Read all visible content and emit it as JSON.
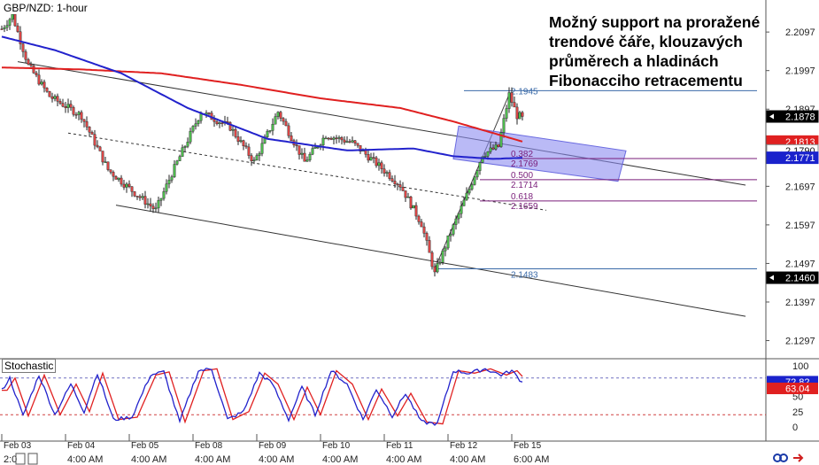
{
  "header": {
    "symbol_title": "GBP/NZD: 1-hour"
  },
  "annotation": {
    "text": "Možný support na proražené trendové čáře, klouzavých průměrech a hladinách Fibonacciho retracementu"
  },
  "indicator": {
    "name": "Stochastic"
  },
  "colors": {
    "bull": "#4db84d",
    "bear": "#d64545",
    "ema_red": "#e02020",
    "ema_blue": "#2222cc",
    "fib": "#7a1e7a",
    "box": "#8c8cf0",
    "trend": "#333333",
    "stoch_blue": "#2222cc",
    "stoch_red": "#e02020",
    "stoch_level": "#7070c0"
  },
  "chart_data": {
    "type": "candlestick",
    "title": "GBP/NZD: 1-hour",
    "ylim": [
      2.125,
      2.218
    ],
    "price_axis_labels": [
      "2.2097",
      "2.1997",
      "2.1897",
      "2.1797",
      "2.1697",
      "2.1597",
      "2.1497",
      "2.1397",
      "2.1297"
    ],
    "price_tags": [
      {
        "label": "2.1878",
        "style": "last"
      },
      {
        "label": "2.1813",
        "style": "red"
      },
      {
        "label": "2.1790",
        "style": "white"
      },
      {
        "label": "2.1771",
        "style": "blue"
      },
      {
        "label": "2.1460",
        "style": "last"
      }
    ],
    "x_labels": [
      {
        "date": "Feb 03",
        "time": "2:0",
        "index": 0
      },
      {
        "date": "Feb 04",
        "time": "4:00 AM",
        "index": 24
      },
      {
        "date": "Feb 05",
        "time": "4:00 AM",
        "index": 48
      },
      {
        "date": "Feb 08",
        "time": "4:00 AM",
        "index": 72
      },
      {
        "date": "Feb 09",
        "time": "4:00 AM",
        "index": 96
      },
      {
        "date": "Feb 10",
        "time": "4:00 AM",
        "index": 120
      },
      {
        "date": "Feb 11",
        "time": "4:00 AM",
        "index": 144
      },
      {
        "date": "Feb 12",
        "time": "4:00 AM",
        "index": 168
      },
      {
        "date": "Feb 15",
        "time": "6:00 AM",
        "index": 192
      }
    ],
    "anchors": [
      [
        0,
        2.2105
      ],
      [
        4,
        2.214
      ],
      [
        10,
        2.201
      ],
      [
        18,
        2.193
      ],
      [
        30,
        2.188
      ],
      [
        40,
        2.174
      ],
      [
        50,
        2.168
      ],
      [
        58,
        2.1635
      ],
      [
        64,
        2.173
      ],
      [
        75,
        2.189
      ],
      [
        86,
        2.185
      ],
      [
        95,
        2.176
      ],
      [
        104,
        2.189
      ],
      [
        114,
        2.176
      ],
      [
        122,
        2.183
      ],
      [
        132,
        2.181
      ],
      [
        142,
        2.175
      ],
      [
        150,
        2.17
      ],
      [
        158,
        2.16
      ],
      [
        163,
        2.147
      ],
      [
        168,
        2.156
      ],
      [
        176,
        2.169
      ],
      [
        181,
        2.178
      ],
      [
        187,
        2.18
      ],
      [
        191,
        2.1935
      ],
      [
        194,
        2.188
      ],
      [
        196,
        2.1878
      ]
    ],
    "ema_red": [
      [
        0,
        2.2005
      ],
      [
        30,
        2.2
      ],
      [
        60,
        2.199
      ],
      [
        90,
        2.196
      ],
      [
        120,
        2.1925
      ],
      [
        150,
        2.19
      ],
      [
        170,
        2.1865
      ],
      [
        185,
        2.1835
      ],
      [
        196,
        2.1813
      ]
    ],
    "ema_blue": [
      [
        0,
        2.2085
      ],
      [
        20,
        2.205
      ],
      [
        45,
        2.199
      ],
      [
        70,
        2.19
      ],
      [
        100,
        2.182
      ],
      [
        130,
        2.179
      ],
      [
        155,
        2.1795
      ],
      [
        170,
        2.1775
      ],
      [
        185,
        2.1768
      ],
      [
        196,
        2.1771
      ]
    ],
    "trendlines": [
      {
        "name": "upper",
        "points": [
          [
            6,
            2.202
          ],
          [
            280,
            2.17
          ]
        ]
      },
      {
        "name": "middle",
        "points": [
          [
            25,
            2.1835
          ],
          [
            205,
            2.1635
          ]
        ],
        "dashed": true
      },
      {
        "name": "lower",
        "points": [
          [
            43,
            2.1648
          ],
          [
            280,
            2.136
          ]
        ]
      },
      {
        "name": "swing",
        "points": [
          [
            163,
            2.1483
          ],
          [
            191,
            2.1935
          ]
        ]
      }
    ],
    "support_box": [
      [
        172,
        2.1853
      ],
      [
        235,
        2.1789
      ],
      [
        232,
        2.171
      ],
      [
        170,
        2.1768
      ]
    ],
    "fibonacci": {
      "high": 2.1945,
      "low": 2.1483,
      "levels": [
        {
          "ratio": "0.382",
          "price": "2.1769",
          "value": 2.1769
        },
        {
          "ratio": "0.500",
          "price": "2.1714",
          "value": 2.1714
        },
        {
          "ratio": "0.618",
          "price": "2.1659",
          "value": 2.1659
        }
      ],
      "high_label": "2.1945",
      "low_label": "2.1483"
    },
    "stochastic": {
      "ylim": [
        0,
        100
      ],
      "axis_labels": [
        "100",
        "75",
        "50",
        "25",
        "0"
      ],
      "levels": [
        80,
        20
      ],
      "tags": [
        {
          "label": "72.82",
          "style": "blue"
        },
        {
          "label": "63.04",
          "style": "red"
        }
      ],
      "k_anchors": [
        [
          0,
          60
        ],
        [
          3,
          80
        ],
        [
          8,
          18
        ],
        [
          14,
          85
        ],
        [
          20,
          20
        ],
        [
          26,
          70
        ],
        [
          31,
          25
        ],
        [
          36,
          88
        ],
        [
          42,
          12
        ],
        [
          49,
          16
        ],
        [
          56,
          85
        ],
        [
          61,
          90
        ],
        [
          67,
          8
        ],
        [
          74,
          92
        ],
        [
          79,
          95
        ],
        [
          85,
          12
        ],
        [
          91,
          25
        ],
        [
          97,
          88
        ],
        [
          102,
          70
        ],
        [
          108,
          12
        ],
        [
          113,
          65
        ],
        [
          118,
          20
        ],
        [
          124,
          92
        ],
        [
          130,
          70
        ],
        [
          136,
          12
        ],
        [
          141,
          62
        ],
        [
          147,
          18
        ],
        [
          152,
          55
        ],
        [
          158,
          8
        ],
        [
          164,
          5
        ],
        [
          170,
          92
        ],
        [
          176,
          88
        ],
        [
          182,
          95
        ],
        [
          188,
          85
        ],
        [
          192,
          92
        ],
        [
          196,
          72.82
        ]
      ]
    }
  }
}
